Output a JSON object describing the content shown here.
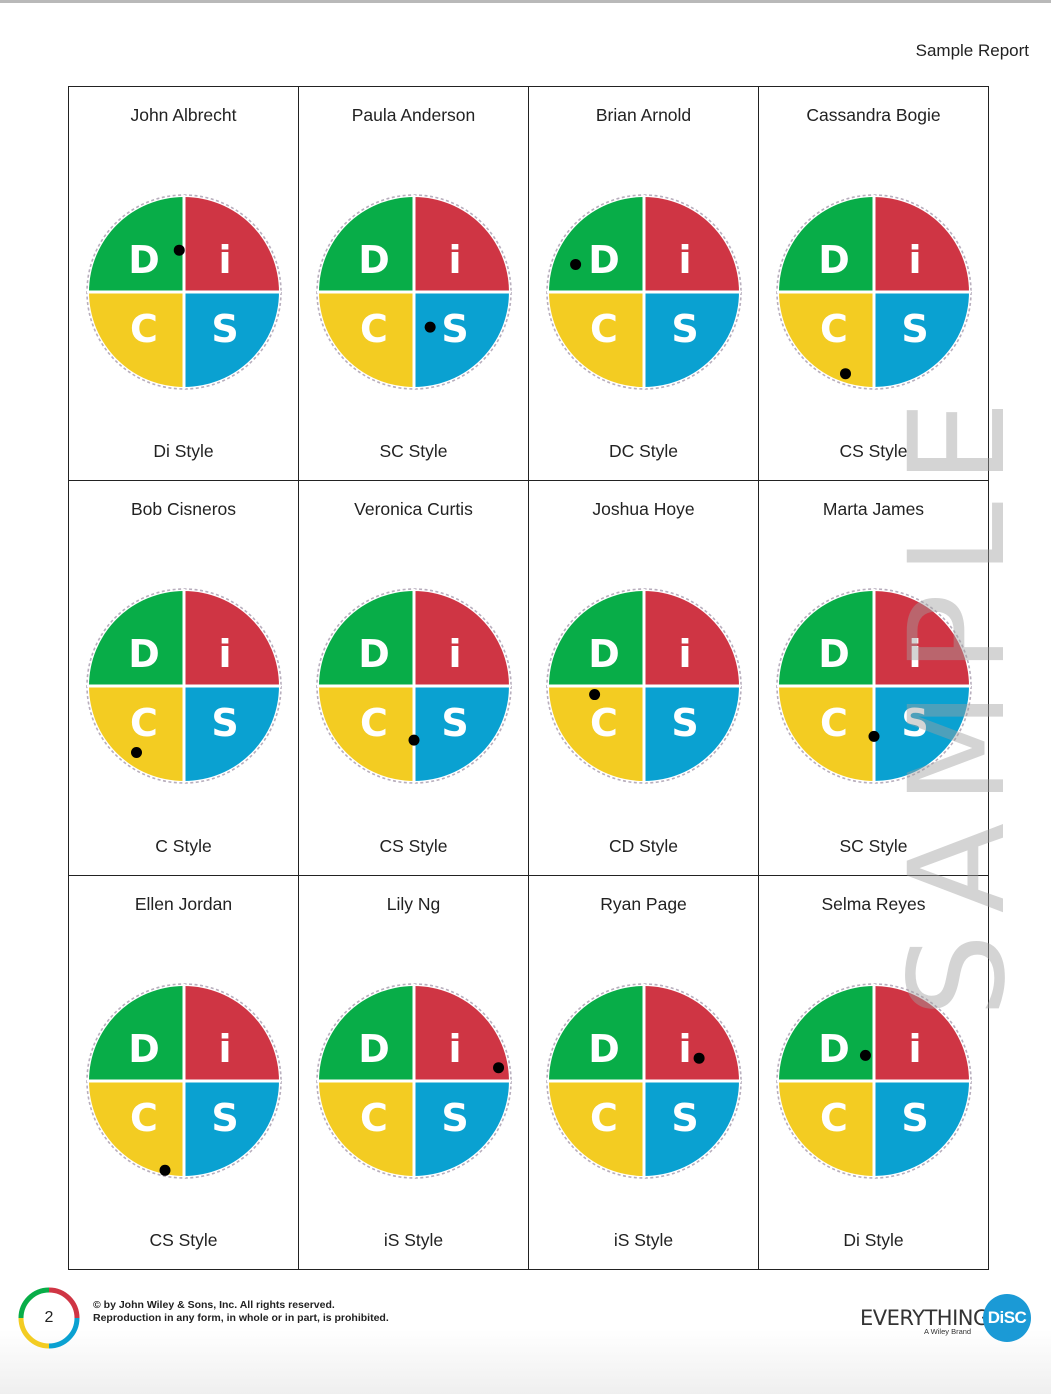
{
  "header": {
    "title": "Sample Report"
  },
  "colors": {
    "d": "#08ad48",
    "i": "#cf3544",
    "c": "#f3cc22",
    "s": "#0aa1d1",
    "ring": "#b8aebd",
    "dot": "#000000"
  },
  "quadrant_letters": {
    "d": "D",
    "i": "i",
    "c": "C",
    "s": "S"
  },
  "people": [
    {
      "name": "John Albrecht",
      "style": "Di Style",
      "dot_position": [
        -0.05,
        -0.44
      ]
    },
    {
      "name": "Paula Anderson",
      "style": "SC Style",
      "dot_position": [
        0.17,
        0.37
      ]
    },
    {
      "name": "Brian Arnold",
      "style": "DC Style",
      "dot_position": [
        -0.72,
        -0.29
      ]
    },
    {
      "name": "Cassandra Bogie",
      "style": "CS Style",
      "dot_position": [
        -0.3,
        0.86
      ]
    },
    {
      "name": "Bob Cisneros",
      "style": "C Style",
      "dot_position": [
        -0.5,
        0.7
      ]
    },
    {
      "name": "Veronica Curtis",
      "style": "CS Style",
      "dot_position": [
        0.0,
        0.57
      ]
    },
    {
      "name": "Joshua Hoye",
      "style": "CD Style",
      "dot_position": [
        -0.52,
        0.09
      ]
    },
    {
      "name": "Marta James",
      "style": "SC Style",
      "dot_position": [
        0.0,
        0.53
      ]
    },
    {
      "name": "Ellen Jordan",
      "style": "CS Style",
      "dot_position": [
        -0.2,
        0.94
      ]
    },
    {
      "name": "Lily Ng",
      "style": "iS Style",
      "dot_position": [
        0.89,
        -0.14
      ]
    },
    {
      "name": "Ryan Page",
      "style": "iS Style",
      "dot_position": [
        0.58,
        -0.24
      ]
    },
    {
      "name": "Selma Reyes",
      "style": "Di Style",
      "dot_position": [
        -0.09,
        -0.27
      ]
    }
  ],
  "watermark": "SAMPLE",
  "footer": {
    "page_number": "2",
    "copyright_line1": "© by John Wiley & Sons, Inc. All rights reserved.",
    "copyright_line2": "Reproduction in any form, in whole or in part, is prohibited.",
    "brand_word": "EVERYTHING",
    "brand_badge": "DiSC",
    "brand_sub": "A Wiley Brand"
  }
}
